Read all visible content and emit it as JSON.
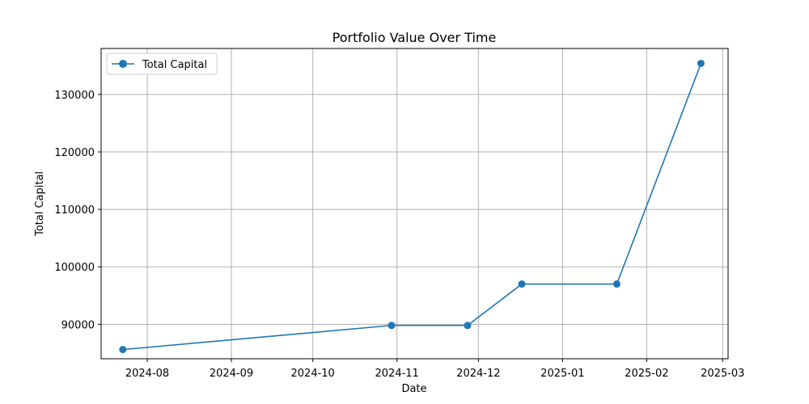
{
  "chart_data": {
    "type": "line",
    "title": "Portfolio Value Over Time",
    "xlabel": "Date",
    "ylabel": "Total Capital",
    "x_axis_type": "date",
    "xlim": [
      "2024-07-15",
      "2025-03-03"
    ],
    "ylim": [
      84000,
      138000
    ],
    "x_ticks": [
      "2024-08",
      "2024-09",
      "2024-10",
      "2024-11",
      "2024-12",
      "2025-01",
      "2025-02",
      "2025-03"
    ],
    "y_ticks": [
      90000,
      100000,
      110000,
      120000,
      130000
    ],
    "grid": true,
    "legend_position": "upper-left",
    "series": [
      {
        "name": "Total Capital",
        "color": "#1f77b4",
        "marker": "circle",
        "points": [
          {
            "x": "2024-07-23",
            "y": 85600
          },
          {
            "x": "2024-10-30",
            "y": 89800
          },
          {
            "x": "2024-11-27",
            "y": 89800
          },
          {
            "x": "2024-12-17",
            "y": 97000
          },
          {
            "x": "2025-01-21",
            "y": 97000
          },
          {
            "x": "2025-02-21",
            "y": 135400
          }
        ]
      }
    ]
  }
}
